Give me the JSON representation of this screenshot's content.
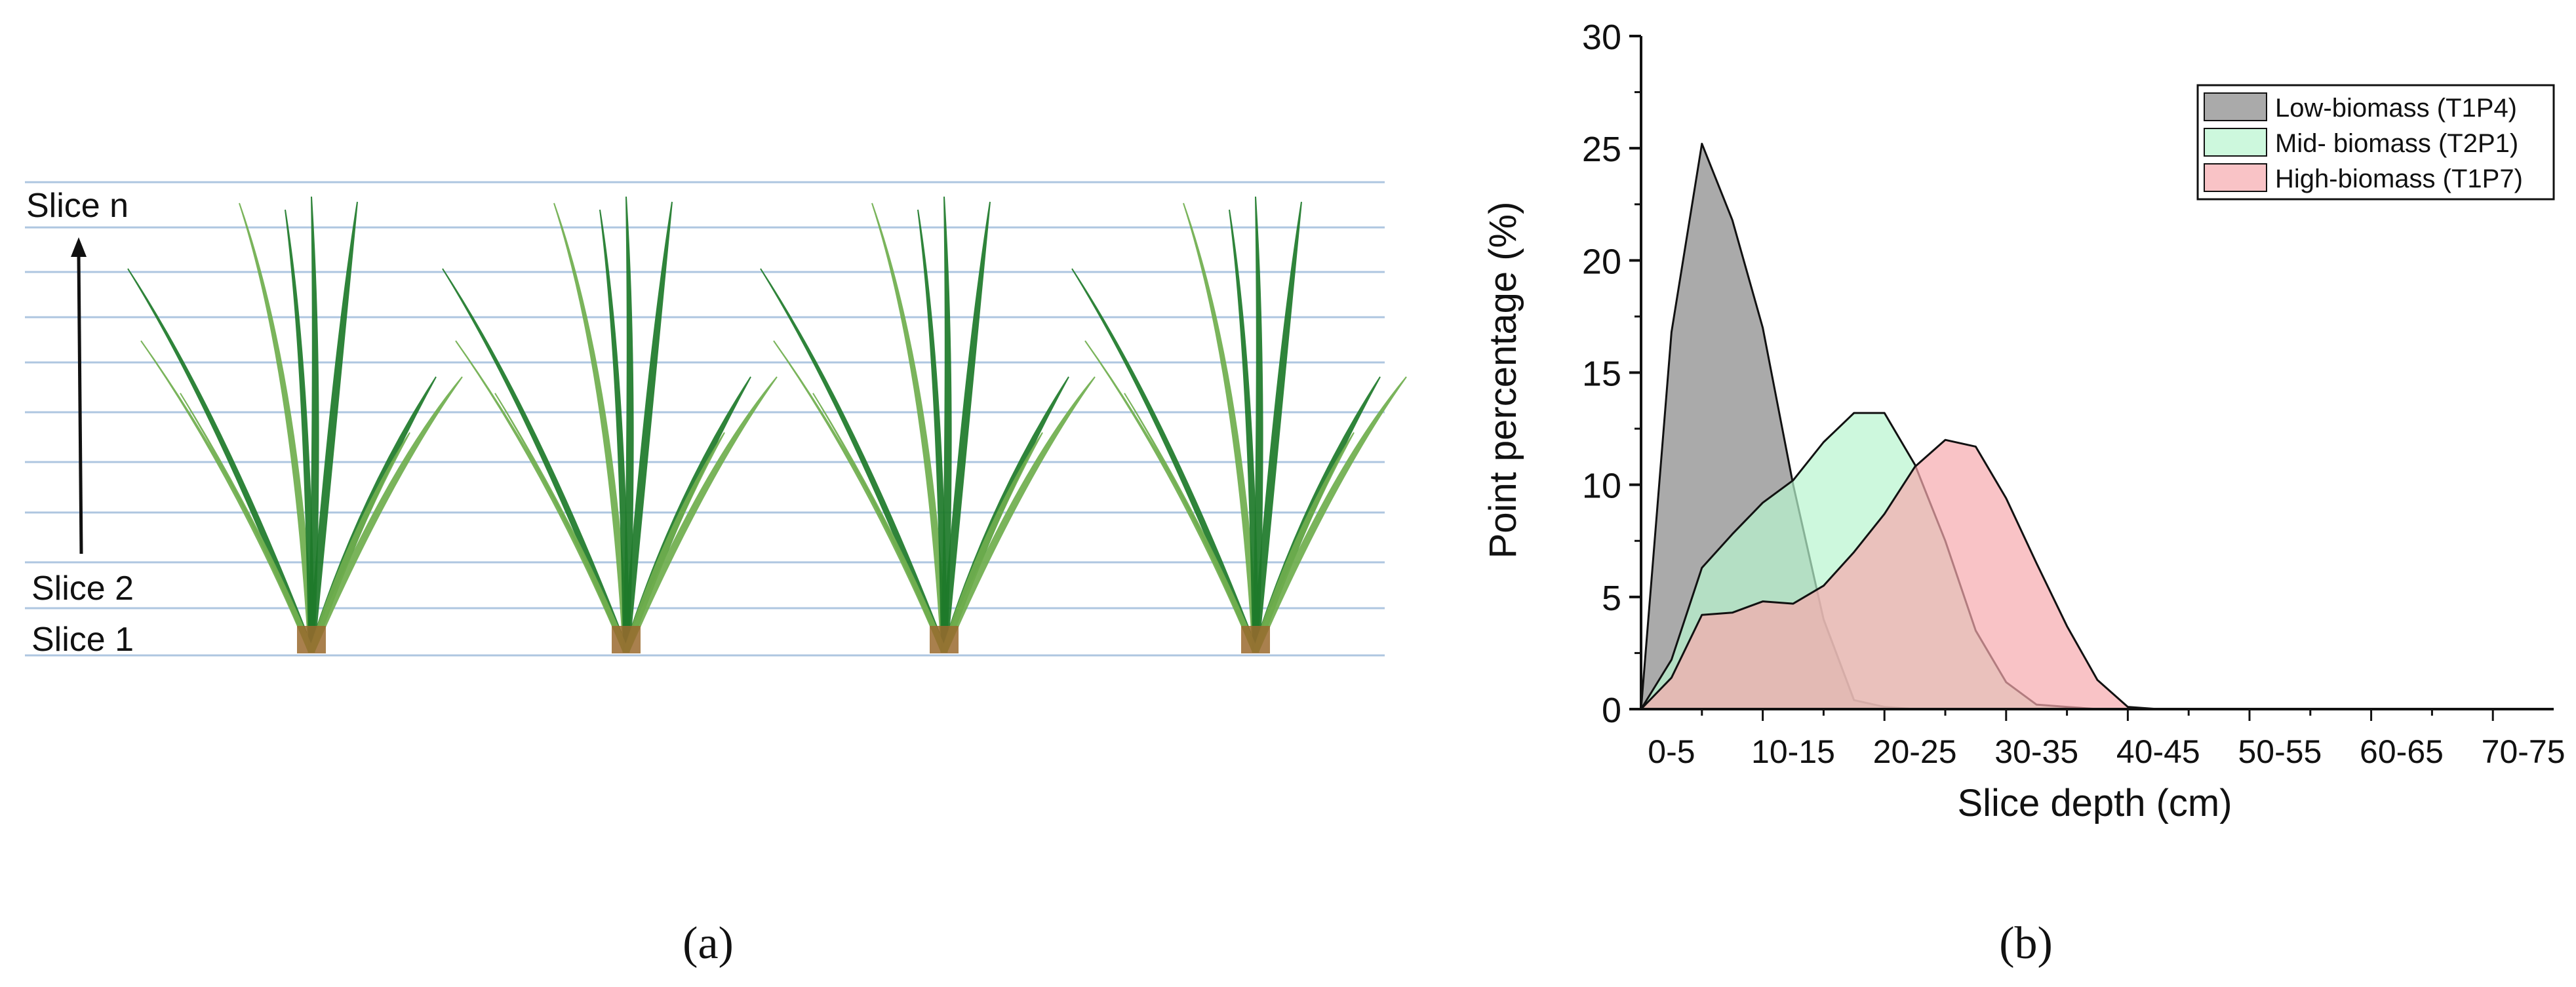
{
  "panel_a": {
    "labels": {
      "top": "Slice n",
      "second": "Slice 2",
      "first": "Slice 1"
    },
    "caption": "(a)",
    "colors": {
      "slice_line": "#aec6e0",
      "leaf_dark": "#1e7a2a",
      "leaf_light": "#6fae4e",
      "stem_base": "#9a6a2e"
    }
  },
  "panel_b": {
    "caption": "(b)"
  },
  "chart_data": {
    "type": "area",
    "xlabel": "Slice depth (cm)",
    "ylabel": "Point percentage (%)",
    "ylim": [
      0,
      30
    ],
    "yticks": [
      0,
      5,
      10,
      15,
      20,
      25,
      30
    ],
    "xlim": [
      0,
      75
    ],
    "xtick_labels": [
      {
        "label": "0-5",
        "at": 2.5
      },
      {
        "label": "10-15",
        "at": 12.5
      },
      {
        "label": "20-25",
        "at": 22.5
      },
      {
        "label": "30-35",
        "at": 32.5
      },
      {
        "label": "40-45",
        "at": 42.5
      },
      {
        "label": "50-55",
        "at": 52.5
      },
      {
        "label": "60-65",
        "at": 62.5
      },
      {
        "label": "70-75",
        "at": 72.5
      }
    ],
    "legend_position": "top-right",
    "series": [
      {
        "name": "Low-biomass (T1P4)",
        "color": "#9b9b9b",
        "opacity": 0.85,
        "x": [
          0,
          2.5,
          5,
          7.5,
          10,
          12.5,
          15,
          17.5,
          20,
          22.5,
          25,
          27.5,
          30,
          32.5,
          35,
          40
        ],
        "y": [
          0,
          16.8,
          25.2,
          21.8,
          17.0,
          10.0,
          4.0,
          0.4,
          0.1,
          0.0,
          0.0,
          0.0,
          0.0,
          0.0,
          0.0,
          0.0
        ]
      },
      {
        "name": "Mid- biomass (T2P1)",
        "color": "#b8f5cf",
        "opacity": 0.7,
        "x": [
          0,
          2.5,
          5,
          7.5,
          10,
          12.5,
          15,
          17.5,
          20,
          22.5,
          25,
          27.5,
          30,
          32.5,
          35,
          37.5,
          40,
          42.5,
          45
        ],
        "y": [
          0,
          2.2,
          6.3,
          7.8,
          9.2,
          10.2,
          11.9,
          13.2,
          13.2,
          10.9,
          7.5,
          3.5,
          1.2,
          0.2,
          0.1,
          0.0,
          0.0,
          0.0,
          0.0
        ]
      },
      {
        "name": "High-biomass (T1P7)",
        "color": "#f7a9ae",
        "opacity": 0.7,
        "x": [
          0,
          2.5,
          5,
          7.5,
          10,
          12.5,
          15,
          17.5,
          20,
          22.5,
          25,
          27.5,
          30,
          32.5,
          35,
          37.5,
          40,
          42.5,
          45,
          47.5,
          50
        ],
        "y": [
          0,
          1.4,
          4.2,
          4.3,
          4.8,
          4.7,
          5.5,
          7.0,
          8.7,
          10.8,
          12.0,
          11.7,
          9.4,
          6.5,
          3.7,
          1.3,
          0.1,
          0.0,
          0.0,
          0.0,
          0.0
        ]
      }
    ]
  }
}
